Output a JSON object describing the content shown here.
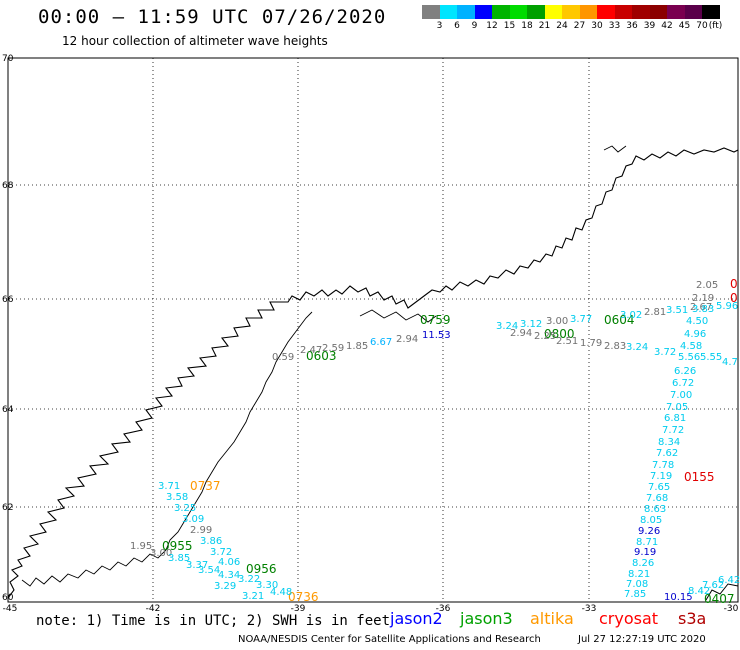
{
  "header": {
    "title": "00:00 – 11:59 UTC 07/26/2020",
    "subtitle": "12 hour collection of altimeter wave heights"
  },
  "legend": {
    "colors": [
      "#808080",
      "#00e5ff",
      "#00b2ff",
      "#0000ff",
      "#00b400",
      "#00dc00",
      "#00a000",
      "#ffff00",
      "#ffc800",
      "#ff9600",
      "#ff0000",
      "#c80000",
      "#a00000",
      "#8b0000",
      "#7a0050",
      "#5a004a",
      "#000000"
    ],
    "labels": [
      "3",
      "6",
      "9",
      "12",
      "15",
      "18",
      "21",
      "24",
      "27",
      "30",
      "33",
      "36",
      "39",
      "42",
      "45",
      "70",
      "(ft)"
    ]
  },
  "axes": {
    "lat_ticks": [
      "70",
      "68",
      "66",
      "64",
      "62",
      "60"
    ],
    "lon_ticks": [
      "-45",
      "-42",
      "-39",
      "-36",
      "-33",
      "-30"
    ]
  },
  "times": [
    {
      "text": "0603",
      "color": "#008000"
    },
    {
      "text": "0759",
      "color": "#008000"
    },
    {
      "text": "0800",
      "color": "#008000"
    },
    {
      "text": "0604",
      "color": "#008000"
    },
    {
      "text": "0737",
      "color": "#ff9900"
    },
    {
      "text": "0955",
      "color": "#008000"
    },
    {
      "text": "0956",
      "color": "#008000"
    },
    {
      "text": "0736",
      "color": "#ff9900"
    },
    {
      "text": "0155",
      "color": "#e00000"
    },
    {
      "text": "0407",
      "color": "#008000"
    },
    {
      "text": "0",
      "color": "#e00000"
    },
    {
      "text": "0",
      "color": "#e00000"
    }
  ],
  "waves": [
    {
      "text": "0.59",
      "color": "#707070"
    },
    {
      "text": "2.47",
      "color": "#707070"
    },
    {
      "text": "2.59",
      "color": "#707070"
    },
    {
      "text": "1.85",
      "color": "#707070"
    },
    {
      "text": "6.67",
      "color": "#00b2ff"
    },
    {
      "text": "2.94",
      "color": "#707070"
    },
    {
      "text": "11.53",
      "color": "#0000cc"
    },
    {
      "text": "2.94",
      "color": "#707070"
    },
    {
      "text": "2.25",
      "color": "#707070"
    },
    {
      "text": "2.51",
      "color": "#707070"
    },
    {
      "text": "1.79",
      "color": "#707070"
    },
    {
      "text": "2.83",
      "color": "#707070"
    },
    {
      "text": "3.00",
      "color": "#707070"
    },
    {
      "text": "3.24",
      "color": "#00ccee"
    },
    {
      "text": "3.12",
      "color": "#00ccee"
    },
    {
      "text": "3.77",
      "color": "#00ccee"
    },
    {
      "text": "3.02",
      "color": "#00ccee"
    },
    {
      "text": "2.81",
      "color": "#707070"
    },
    {
      "text": "3.51",
      "color": "#00ccee"
    },
    {
      "text": "2.67",
      "color": "#707070"
    },
    {
      "text": "2.05",
      "color": "#707070"
    },
    {
      "text": "2.19",
      "color": "#707070"
    },
    {
      "text": "5.96",
      "color": "#00ccee"
    },
    {
      "text": "3.83",
      "color": "#00ccee"
    },
    {
      "text": "4.50",
      "color": "#00ccee"
    },
    {
      "text": "4.96",
      "color": "#00ccee"
    },
    {
      "text": "3.24",
      "color": "#00ccee"
    },
    {
      "text": "3.72",
      "color": "#00ccee"
    },
    {
      "text": "4.58",
      "color": "#00ccee"
    },
    {
      "text": "5.56",
      "color": "#00ccee"
    },
    {
      "text": "5.55",
      "color": "#00ccee"
    },
    {
      "text": "4.7",
      "color": "#00ccee"
    },
    {
      "text": "6.26",
      "color": "#00ccee"
    },
    {
      "text": "6.72",
      "color": "#00ccee"
    },
    {
      "text": "7.00",
      "color": "#00ccee"
    },
    {
      "text": "7.05",
      "color": "#00ccee"
    },
    {
      "text": "6.81",
      "color": "#00ccee"
    },
    {
      "text": "7.72",
      "color": "#00ccee"
    },
    {
      "text": "8.34",
      "color": "#00ccee"
    },
    {
      "text": "7.62",
      "color": "#00ccee"
    },
    {
      "text": "7.78",
      "color": "#00ccee"
    },
    {
      "text": "7.19",
      "color": "#00ccee"
    },
    {
      "text": "7.65",
      "color": "#00ccee"
    },
    {
      "text": "7.68",
      "color": "#00ccee"
    },
    {
      "text": "8.63",
      "color": "#00ccee"
    },
    {
      "text": "8.05",
      "color": "#00ccee"
    },
    {
      "text": "9.26",
      "color": "#0000cc"
    },
    {
      "text": "8.71",
      "color": "#00ccee"
    },
    {
      "text": "9.19",
      "color": "#0000cc"
    },
    {
      "text": "8.26",
      "color": "#00ccee"
    },
    {
      "text": "8.21",
      "color": "#00ccee"
    },
    {
      "text": "7.08",
      "color": "#00ccee"
    },
    {
      "text": "7.85",
      "color": "#00ccee"
    },
    {
      "text": "10.15",
      "color": "#0000cc"
    },
    {
      "text": "8.42",
      "color": "#00ccee"
    },
    {
      "text": "7.62",
      "color": "#00ccee"
    },
    {
      "text": "6.42",
      "color": "#00ccee"
    },
    {
      "text": "3.71",
      "color": "#00ccee"
    },
    {
      "text": "3.58",
      "color": "#00ccee"
    },
    {
      "text": "3.25",
      "color": "#00ccee"
    },
    {
      "text": "3.09",
      "color": "#00ccee"
    },
    {
      "text": "2.99",
      "color": "#707070"
    },
    {
      "text": "1.95",
      "color": "#707070"
    },
    {
      "text": "3.86",
      "color": "#00ccee"
    },
    {
      "text": "3.00",
      "color": "#707070"
    },
    {
      "text": "3.72",
      "color": "#00ccee"
    },
    {
      "text": "3.85",
      "color": "#00ccee"
    },
    {
      "text": "3.37",
      "color": "#00ccee"
    },
    {
      "text": "3.54",
      "color": "#00ccee"
    },
    {
      "text": "4.06",
      "color": "#00ccee"
    },
    {
      "text": "4.34",
      "color": "#00ccee"
    },
    {
      "text": "3.29",
      "color": "#00ccee"
    },
    {
      "text": "3.22",
      "color": "#00ccee"
    },
    {
      "text": "3.30",
      "color": "#00ccee"
    },
    {
      "text": "3.21",
      "color": "#00ccee"
    },
    {
      "text": "4.48",
      "color": "#00ccee"
    }
  ],
  "footer": {
    "note": "note: 1) Time is in UTC; 2) SWH is in feet",
    "satellites": [
      {
        "name": "jason2",
        "color": "#0000ff"
      },
      {
        "name": "jason3",
        "color": "#00a000"
      },
      {
        "name": "altika",
        "color": "#ff9900"
      },
      {
        "name": "cryosat",
        "color": "#ff0000"
      },
      {
        "name": "s3a",
        "color": "#b00000"
      }
    ],
    "credit": "NOAA/NESDIS Center for Satellite Applications and Research",
    "timestamp": "Jul 27 12:27:19 UTC 2020"
  }
}
